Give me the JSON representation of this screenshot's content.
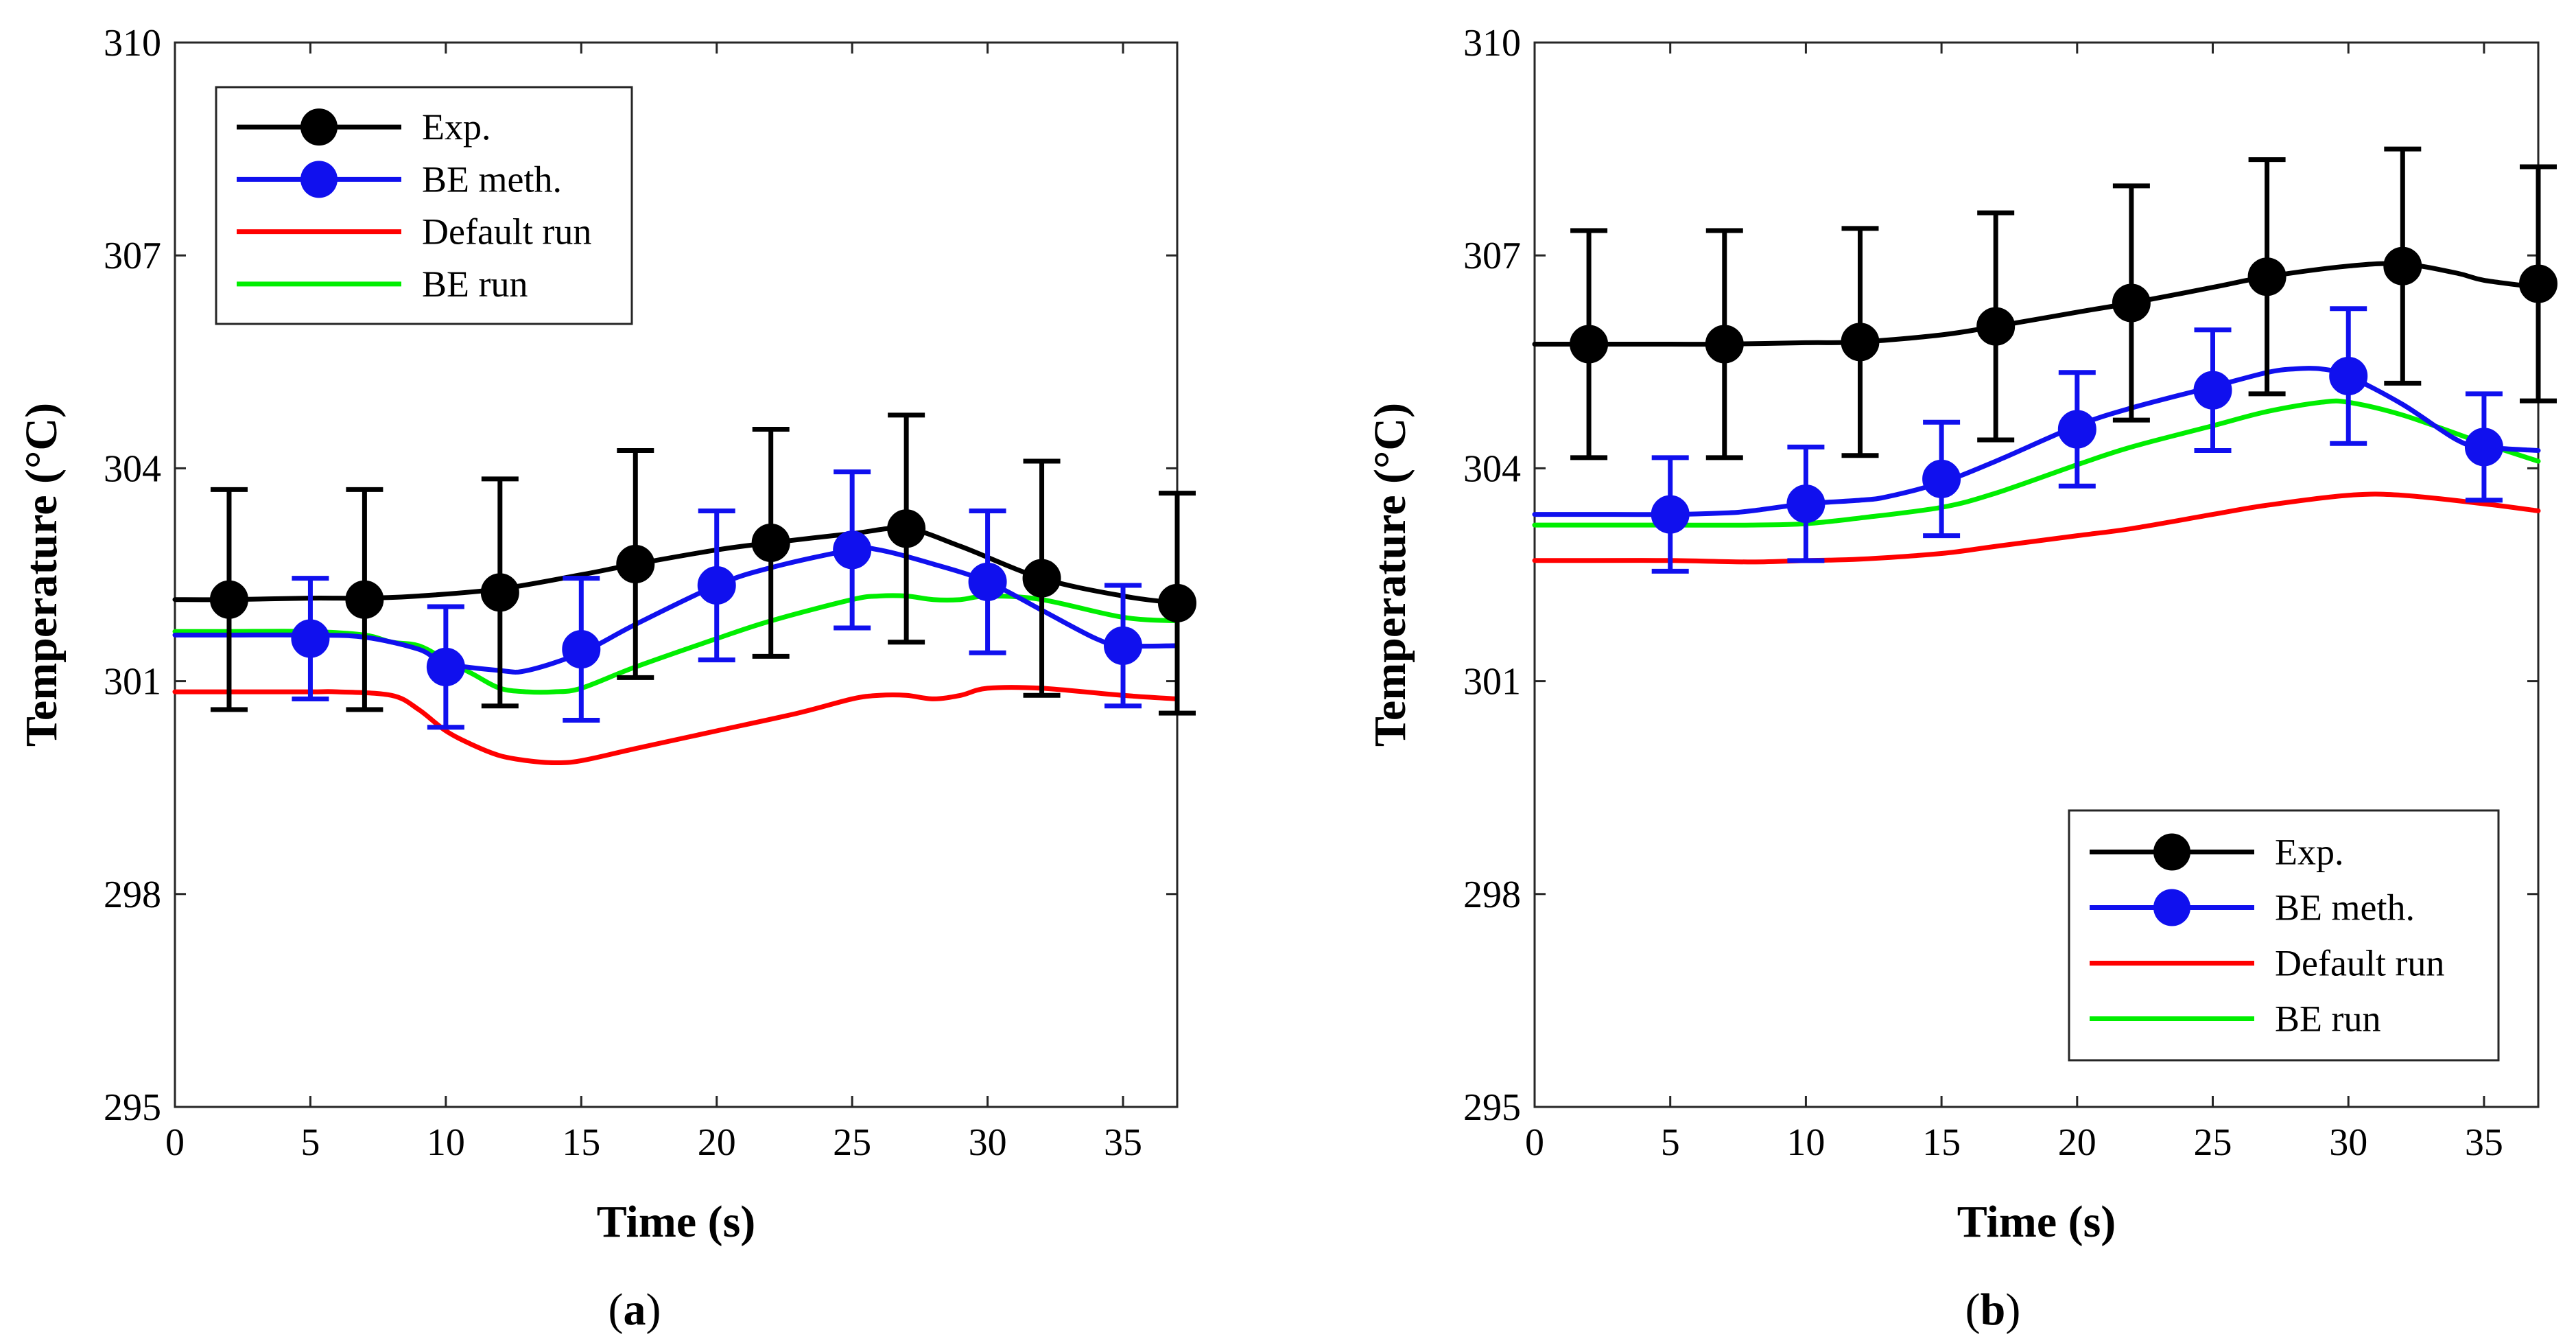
{
  "chart_data": [
    {
      "type": "line",
      "panel_label": "(a)",
      "panel_letter": "a",
      "xlabel": "Time (s)",
      "ylabel": "Temperature (°C)",
      "xlim": [
        0,
        37
      ],
      "ylim": [
        295,
        310
      ],
      "xticks": [
        0,
        5,
        10,
        15,
        20,
        25,
        30,
        35
      ],
      "yticks": [
        295,
        298,
        301,
        304,
        307,
        310
      ],
      "legend_position": "top-left",
      "series": [
        {
          "name": "Exp.",
          "color": "#000000",
          "marker": true,
          "curve": {
            "x": [
              0,
              2,
              5,
              7,
              9,
              12,
              15,
              17,
              20,
              22,
              25,
              27,
              29,
              32,
              35,
              37
            ],
            "y": [
              302.15,
              302.15,
              302.17,
              302.17,
              302.2,
              302.3,
              302.5,
              302.65,
              302.85,
              302.95,
              303.08,
              303.15,
              302.9,
              302.45,
              302.2,
              302.1
            ]
          },
          "points": {
            "x": [
              2,
              7,
              12,
              17,
              22,
              27,
              32,
              37
            ],
            "y": [
              302.15,
              302.15,
              302.25,
              302.65,
              302.95,
              303.15,
              302.45,
              302.1
            ],
            "err": [
              1.55,
              1.55,
              1.6,
              1.6,
              1.6,
              1.6,
              1.65,
              1.55
            ]
          }
        },
        {
          "name": "BE meth.",
          "color": "#1010ee",
          "marker": true,
          "curve": {
            "x": [
              0,
              2,
              5,
              7,
              9,
              10,
              12,
              13,
              15,
              17,
              20,
              22,
              25,
              26,
              28,
              30,
              32,
              34,
              35,
              37
            ],
            "y": [
              301.65,
              301.65,
              301.65,
              301.62,
              301.45,
              301.25,
              301.15,
              301.15,
              301.4,
              301.8,
              302.35,
              302.6,
              302.85,
              302.85,
              302.65,
              302.4,
              302.0,
              301.6,
              301.5,
              301.5
            ]
          },
          "points": {
            "x": [
              5,
              10,
              15,
              20,
              25,
              30,
              35
            ],
            "y": [
              301.6,
              301.2,
              301.45,
              302.35,
              302.85,
              302.4,
              301.5
            ],
            "err": [
              0.85,
              0.85,
              1.0,
              1.05,
              1.1,
              1.0,
              0.85
            ]
          }
        },
        {
          "name": "Default run",
          "color": "#ff0000",
          "marker": false,
          "curve": {
            "x": [
              0,
              2,
              5,
              6,
              8,
              9,
              10,
              11,
              12,
              13,
              14,
              15,
              17,
              20,
              23,
              25,
              26,
              27,
              28,
              29,
              30,
              32,
              35,
              37
            ],
            "y": [
              300.85,
              300.85,
              300.85,
              300.85,
              300.8,
              300.6,
              300.3,
              300.1,
              299.95,
              299.88,
              299.85,
              299.88,
              300.05,
              300.3,
              300.55,
              300.75,
              300.8,
              300.8,
              300.75,
              300.8,
              300.9,
              300.9,
              300.8,
              300.75
            ]
          }
        },
        {
          "name": "BE run",
          "color": "#00ee00",
          "marker": false,
          "curve": {
            "x": [
              0,
              2,
              5,
              7,
              8,
              9,
              10,
              11,
              12,
              13,
              14,
              15,
              17,
              20,
              22,
              25,
              26,
              27,
              28,
              29,
              30,
              32,
              35,
              37
            ],
            "y": [
              301.7,
              301.7,
              301.7,
              301.65,
              301.55,
              301.5,
              301.3,
              301.1,
              300.9,
              300.85,
              300.85,
              300.9,
              301.2,
              301.6,
              301.85,
              302.15,
              302.2,
              302.2,
              302.15,
              302.15,
              302.2,
              302.15,
              301.9,
              301.85
            ]
          }
        }
      ]
    },
    {
      "type": "line",
      "panel_label": "(b)",
      "panel_letter": "b",
      "xlabel": "Time (s)",
      "ylabel": "Temperature (°C)",
      "xlim": [
        0,
        37
      ],
      "ylim": [
        295,
        310
      ],
      "xticks": [
        0,
        5,
        10,
        15,
        20,
        25,
        30,
        35
      ],
      "yticks": [
        295,
        298,
        301,
        304,
        307,
        310
      ],
      "legend_position": "bottom-right",
      "series": [
        {
          "name": "Exp.",
          "color": "#000000",
          "marker": true,
          "curve": {
            "x": [
              0,
              2,
              5,
              7,
              10,
              12,
              15,
              17,
              20,
              22,
              25,
              27,
              30,
              32,
              34,
              35,
              37
            ],
            "y": [
              305.75,
              305.75,
              305.75,
              305.75,
              305.77,
              305.78,
              305.88,
              306.0,
              306.2,
              306.33,
              306.55,
              306.7,
              306.85,
              306.88,
              306.75,
              306.65,
              306.55
            ]
          },
          "points": {
            "x": [
              2,
              7,
              12,
              17,
              22,
              27,
              32,
              37
            ],
            "y": [
              305.75,
              305.75,
              305.78,
              306.0,
              306.33,
              306.7,
              306.85,
              306.6
            ],
            "err": [
              1.6,
              1.6,
              1.6,
              1.6,
              1.65,
              1.65,
              1.65,
              1.65
            ]
          }
        },
        {
          "name": "BE meth.",
          "color": "#1010ee",
          "marker": true,
          "curve": {
            "x": [
              0,
              2,
              5,
              7,
              8,
              10,
              12,
              13,
              15,
              17,
              20,
              22,
              25,
              27,
              28,
              29,
              30,
              32,
              34,
              35,
              37
            ],
            "y": [
              303.35,
              303.35,
              303.35,
              303.37,
              303.4,
              303.5,
              303.55,
              303.6,
              303.8,
              304.1,
              304.6,
              304.85,
              305.15,
              305.35,
              305.4,
              305.4,
              305.3,
              304.9,
              304.4,
              304.3,
              304.25
            ]
          },
          "points": {
            "x": [
              5,
              10,
              15,
              20,
              25,
              30,
              35
            ],
            "y": [
              303.35,
              303.5,
              303.85,
              304.55,
              305.1,
              305.3,
              304.3
            ],
            "err": [
              0.8,
              0.8,
              0.8,
              0.8,
              0.85,
              0.95,
              0.75
            ]
          }
        },
        {
          "name": "Default run",
          "color": "#ff0000",
          "marker": false,
          "curve": {
            "x": [
              0,
              2,
              5,
              8,
              10,
              12,
              15,
              17,
              20,
              22,
              25,
              27,
              30,
              32,
              35,
              37
            ],
            "y": [
              302.7,
              302.7,
              302.7,
              302.68,
              302.7,
              302.72,
              302.8,
              302.9,
              303.05,
              303.15,
              303.35,
              303.48,
              303.62,
              303.62,
              303.5,
              303.4
            ]
          }
        },
        {
          "name": "BE run",
          "color": "#00ee00",
          "marker": false,
          "curve": {
            "x": [
              0,
              2,
              5,
              8,
              10,
              12,
              15,
              17,
              20,
              22,
              25,
              27,
              29,
              30,
              32,
              35,
              37
            ],
            "y": [
              303.2,
              303.2,
              303.2,
              303.2,
              303.22,
              303.3,
              303.45,
              303.65,
              304.05,
              304.3,
              304.6,
              304.8,
              304.93,
              304.93,
              304.75,
              304.35,
              304.1
            ]
          }
        }
      ]
    }
  ]
}
